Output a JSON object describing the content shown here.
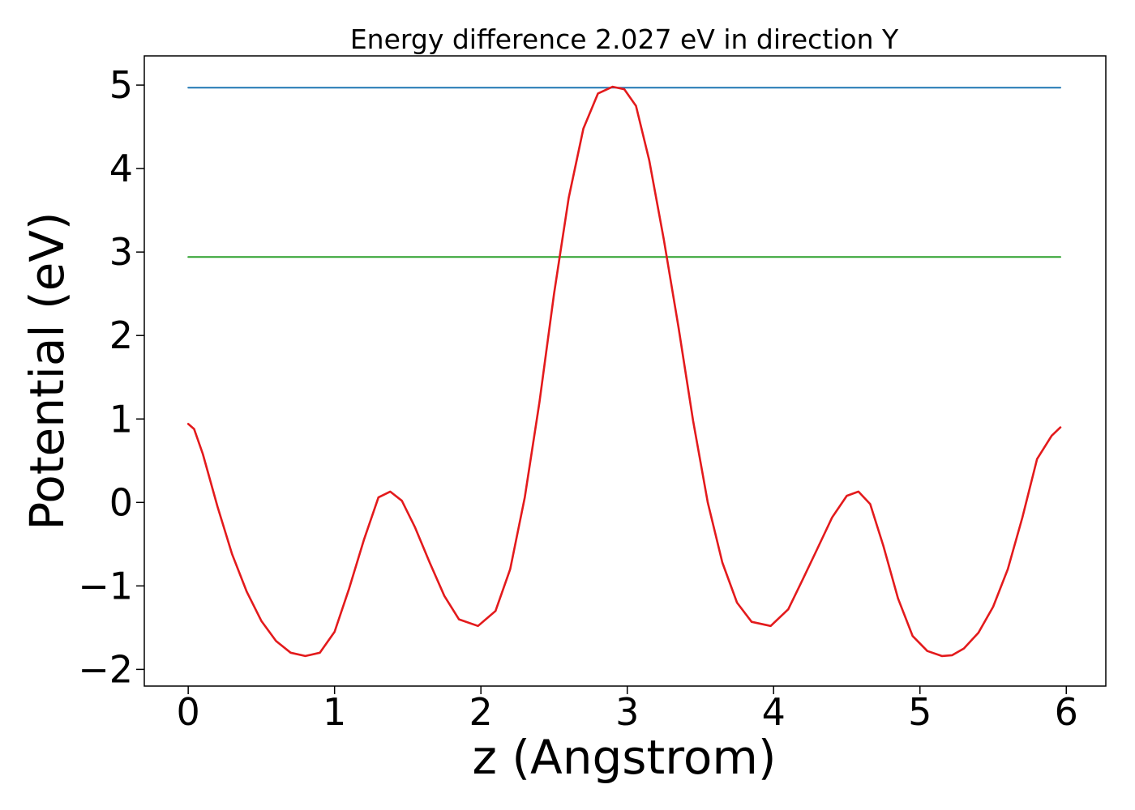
{
  "chart_data": {
    "type": "line",
    "title": "Energy difference 2.027 eV in direction Y",
    "xlabel": "z (Angstrom)",
    "ylabel": "Potential (eV)",
    "xlim": [
      -0.3,
      6.27
    ],
    "ylim": [
      -2.2,
      5.35
    ],
    "xticks": [
      0,
      1,
      2,
      3,
      4,
      5,
      6
    ],
    "xtick_labels": [
      "0",
      "1",
      "2",
      "3",
      "4",
      "5",
      "6"
    ],
    "yticks": [
      -2,
      -1,
      0,
      1,
      2,
      3,
      4,
      5
    ],
    "ytick_labels": [
      "−2",
      "−1",
      "0",
      "1",
      "2",
      "3",
      "4",
      "5"
    ],
    "grid": false,
    "series": [
      {
        "color": "#1f77b4",
        "x": [
          0,
          5.96
        ],
        "y": [
          4.97,
          4.97
        ]
      },
      {
        "color": "#2ca02c",
        "x": [
          0,
          5.96
        ],
        "y": [
          2.94,
          2.94
        ]
      },
      {
        "color": "#e31a1c",
        "x": [
          0,
          0.04,
          0.1,
          0.2,
          0.3,
          0.4,
          0.5,
          0.6,
          0.7,
          0.8,
          0.9,
          1.0,
          1.1,
          1.2,
          1.3,
          1.38,
          1.46,
          1.55,
          1.65,
          1.75,
          1.85,
          1.98,
          2.1,
          2.2,
          2.3,
          2.4,
          2.5,
          2.6,
          2.7,
          2.8,
          2.9,
          2.98,
          3.06,
          3.15,
          3.25,
          3.35,
          3.45,
          3.55,
          3.65,
          3.75,
          3.85,
          3.98,
          4.1,
          4.2,
          4.3,
          4.4,
          4.5,
          4.58,
          4.66,
          4.75,
          4.85,
          4.95,
          5.05,
          5.15,
          5.22,
          5.3,
          5.4,
          5.5,
          5.6,
          5.7,
          5.8,
          5.9,
          5.96
        ],
        "y": [
          0.94,
          0.88,
          0.58,
          -0.05,
          -0.62,
          -1.07,
          -1.42,
          -1.66,
          -1.8,
          -1.84,
          -1.8,
          -1.55,
          -1.03,
          -0.45,
          0.06,
          0.13,
          0.02,
          -0.3,
          -0.72,
          -1.12,
          -1.4,
          -1.48,
          -1.3,
          -0.8,
          0.06,
          1.2,
          2.5,
          3.65,
          4.48,
          4.9,
          4.98,
          4.95,
          4.75,
          4.1,
          3.15,
          2.1,
          0.98,
          0.0,
          -0.72,
          -1.2,
          -1.43,
          -1.48,
          -1.28,
          -0.92,
          -0.55,
          -0.18,
          0.08,
          0.13,
          -0.02,
          -0.52,
          -1.15,
          -1.6,
          -1.78,
          -1.84,
          -1.83,
          -1.75,
          -1.56,
          -1.25,
          -0.8,
          -0.18,
          0.52,
          0.8,
          0.9
        ]
      }
    ]
  }
}
